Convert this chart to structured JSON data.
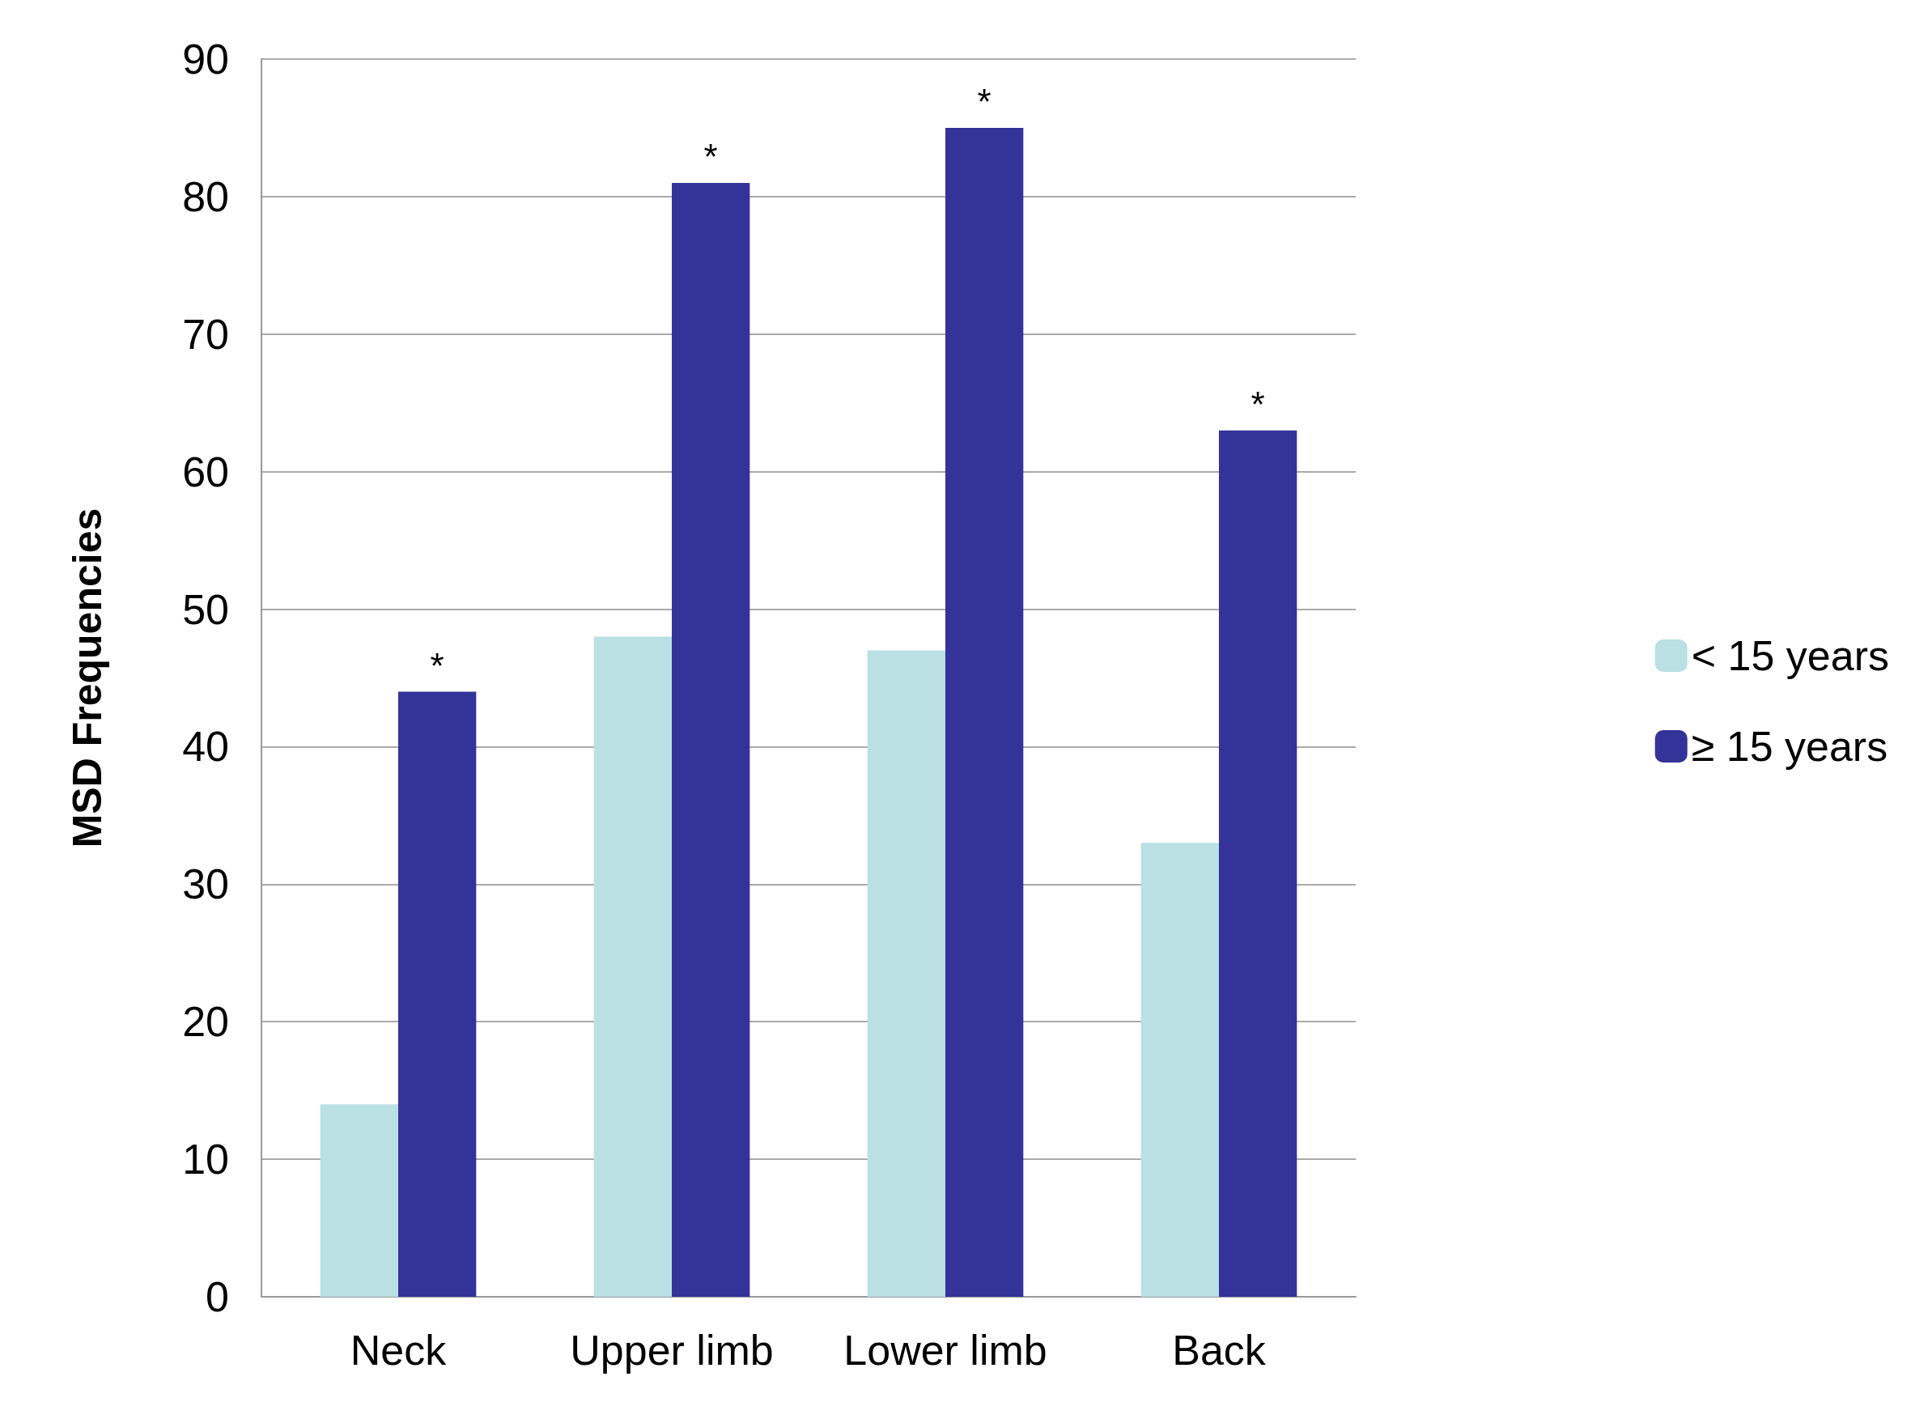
{
  "chart_data": {
    "type": "bar",
    "ylabel": "MSD Frequencies",
    "categories": [
      "Neck",
      "Upper limb",
      "Lower limb",
      "Back"
    ],
    "series": [
      {
        "name": "< 15 years",
        "color": "#bae0e3",
        "values": [
          14,
          48,
          47,
          33
        ]
      },
      {
        "name": "≥ 15 years",
        "color": "#343399",
        "values": [
          44,
          81,
          85,
          63
        ]
      }
    ],
    "ylim": [
      0,
      90
    ],
    "yticks": [
      0,
      10,
      20,
      30,
      40,
      50,
      60,
      70,
      80,
      90
    ],
    "grid": "y",
    "legend": "right",
    "annotations": [
      {
        "text": "*",
        "x": "Neck",
        "y": 44
      },
      {
        "text": "*",
        "x": "Upper limb",
        "y": 81
      },
      {
        "text": "*",
        "x": "Lower limb",
        "y": 85
      },
      {
        "text": "*",
        "x": "Back",
        "y": 63
      }
    ]
  }
}
